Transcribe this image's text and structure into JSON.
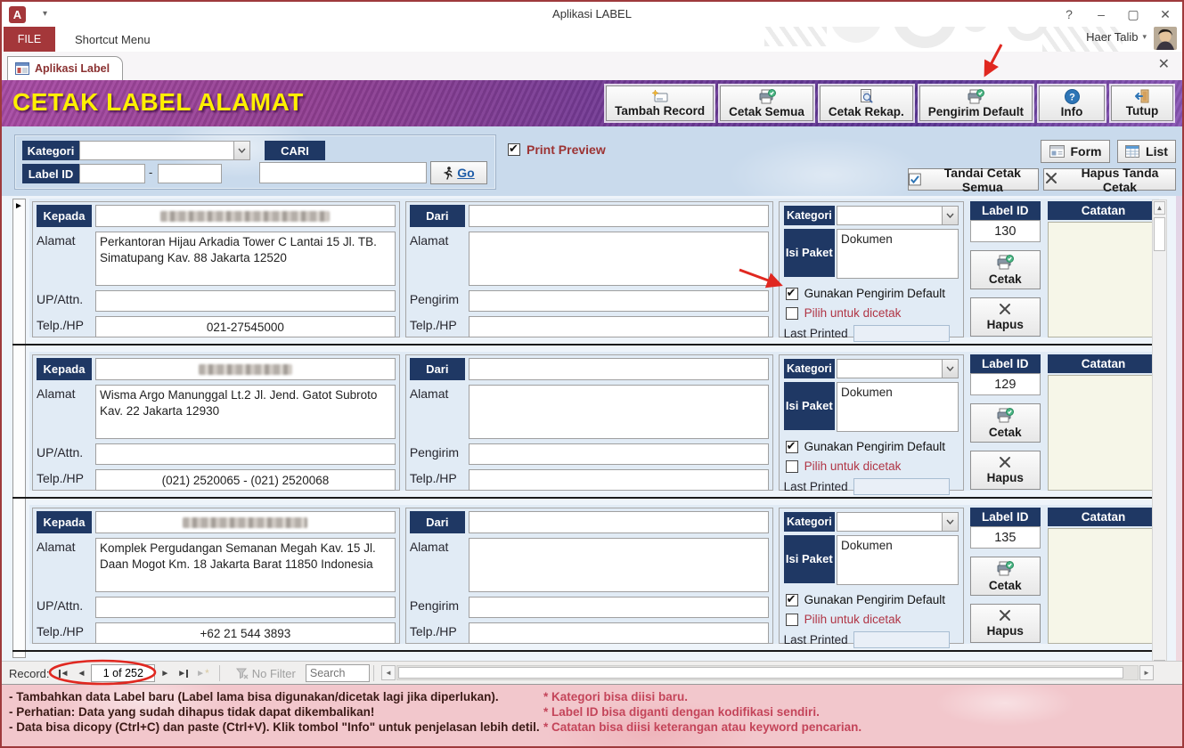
{
  "window": {
    "app_initial": "A",
    "title": "Aplikasi LABEL",
    "user_name": "Haer Talib",
    "controls": {
      "help": "?",
      "minimize": "–",
      "maximize": "▢",
      "close": "✕"
    }
  },
  "ribbon": {
    "file_tab": "FILE",
    "shortcut_menu_tab": "Shortcut Menu"
  },
  "document_tab": {
    "label": "Aplikasi Label",
    "close": "✕"
  },
  "header": {
    "title": "CETAK LABEL ALAMAT",
    "buttons": {
      "tambah_record": "Tambah Record",
      "cetak_semua": "Cetak Semua",
      "cetak_rekap": "Cetak Rekap.",
      "pengirim_default": "Pengirim Default",
      "info": "Info",
      "tutup": "Tutup"
    }
  },
  "filter": {
    "kategori_label": "Kategori",
    "kategori_value": "",
    "cari_label": "CARI",
    "label_id_label": "Label ID",
    "label_id_from": "",
    "label_id_to": "",
    "range_separator": "-",
    "search_value": "",
    "go_label": "Go",
    "print_preview_label": "Print Preview",
    "print_preview_checked": true,
    "form_button": "Form",
    "list_button": "List",
    "tandai_button": "Tandai Cetak Semua",
    "hapus_tanda_button": "Hapus Tanda Cetak"
  },
  "record_labels": {
    "kepada": "Kepada",
    "alamat": "Alamat",
    "up_attn": "UP/Attn.",
    "telp": "Telp./HP",
    "dari": "Dari",
    "pengirim": "Pengirim",
    "kategori": "Kategori",
    "isi_paket": "Isi Paket",
    "gunakan_default": "Gunakan Pengirim Default",
    "pilih_dicetak": "Pilih untuk dicetak",
    "last_printed": "Last Printed",
    "label_id": "Label ID",
    "cetak": "Cetak",
    "hapus": "Hapus",
    "catatan": "Catatan"
  },
  "records": [
    {
      "alamat": "Perkantoran Hijau Arkadia Tower C Lantai 15 Jl. TB. Simatupang Kav. 88 Jakarta 12520",
      "up_attn": "",
      "telp": "021-27545000",
      "dari": "",
      "dari_alamat": "",
      "pengirim": "",
      "pengirim_telp": "",
      "kategori": "",
      "isi_paket": "Dokumen",
      "gunakan_checked": true,
      "pilih_checked": false,
      "last_printed": "",
      "label_id": "130",
      "catatan": "",
      "redact_width": 190
    },
    {
      "alamat": "Wisma Argo Manunggal Lt.2 Jl. Jend. Gatot Subroto Kav. 22 Jakarta 12930",
      "up_attn": "",
      "telp": "(021) 2520065 - (021) 2520068",
      "dari": "",
      "dari_alamat": "",
      "pengirim": "",
      "pengirim_telp": "",
      "kategori": "",
      "isi_paket": "Dokumen",
      "gunakan_checked": true,
      "pilih_checked": false,
      "last_printed": "",
      "label_id": "129",
      "catatan": "",
      "redact_width": 105
    },
    {
      "alamat": "Komplek Pergudangan Semanan Megah Kav. 15 Jl. Daan Mogot Km. 18 Jakarta Barat 11850 Indonesia",
      "up_attn": "",
      "telp": "+62 21 544 3893",
      "dari": "",
      "dari_alamat": "",
      "pengirim": "",
      "pengirim_telp": "",
      "kategori": "",
      "isi_paket": "Dokumen",
      "gunakan_checked": true,
      "pilih_checked": false,
      "last_printed": "",
      "label_id": "135",
      "catatan": "",
      "redact_width": 140
    }
  ],
  "record_nav": {
    "label": "Record:",
    "position": "1 of 252",
    "no_filter": "No Filter",
    "search_placeholder": "Search"
  },
  "footer": {
    "left_notes": [
      "- Tambahkan data Label baru (Label lama bisa digunakan/dicetak lagi jika diperlukan).",
      "- Perhatian: Data yang sudah dihapus tidak dapat dikembalikan!",
      "- Data bisa dicopy (Ctrl+C) dan paste (Ctrl+V). Klik tombol \"Info\" untuk penjelasan lebih detil."
    ],
    "right_notes": [
      "* Kategori bisa diisi baru.",
      "* Label ID bisa diganti dengan kodifikasi sendiri.",
      "* Catatan bisa diisi keterangan atau keyword pencarian."
    ]
  },
  "colors": {
    "accent_navy": "#1f3864",
    "header_yellow": "#ffef00",
    "file_tab_red": "#a4373a",
    "annotation_red": "#e02820",
    "note_dark": "#3a1a16",
    "note_red": "#c4455a",
    "catatan_bg": "#f6f6e8"
  }
}
